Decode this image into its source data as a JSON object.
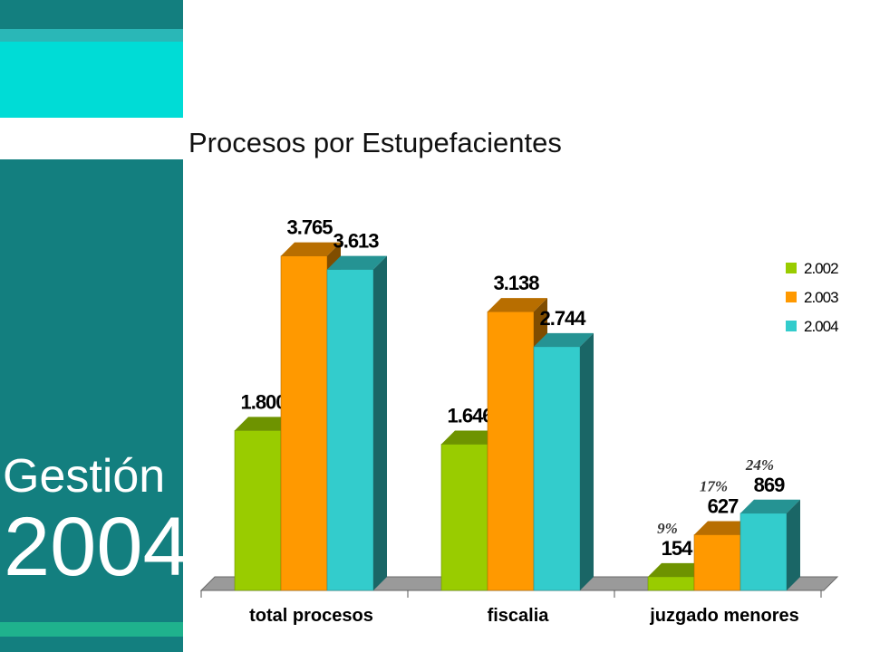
{
  "sidebar": {
    "word": "Gestión",
    "year": "2004"
  },
  "title": "Procesos por Estupefacientes",
  "chart_data": {
    "type": "bar",
    "title": "Procesos por Estupefacientes",
    "categories": [
      "total procesos",
      "fiscalia",
      "juzgado menores"
    ],
    "series": [
      {
        "name": "2.002",
        "color": "#99cc00",
        "values": [
          1800,
          1646,
          154
        ],
        "labels": [
          "1.800",
          "1.646",
          "154"
        ]
      },
      {
        "name": "2.003",
        "color": "#ff9900",
        "values": [
          3765,
          3138,
          627
        ],
        "labels": [
          "3.765",
          "3.138",
          "627"
        ]
      },
      {
        "name": "2.004",
        "color": "#33cccc",
        "values": [
          3613,
          2744,
          869
        ],
        "labels": [
          "3.613",
          "2.744",
          "869"
        ]
      }
    ],
    "annotations": [
      {
        "category": "juzgado menores",
        "series": "2.002",
        "text": "9%"
      },
      {
        "category": "juzgado menores",
        "series": "2.003",
        "text": "17%"
      },
      {
        "category": "juzgado menores",
        "series": "2.004",
        "text": "24%"
      }
    ],
    "ylim": [
      0,
      4200
    ],
    "grid": false,
    "legend_position": "right",
    "three_d": true
  }
}
